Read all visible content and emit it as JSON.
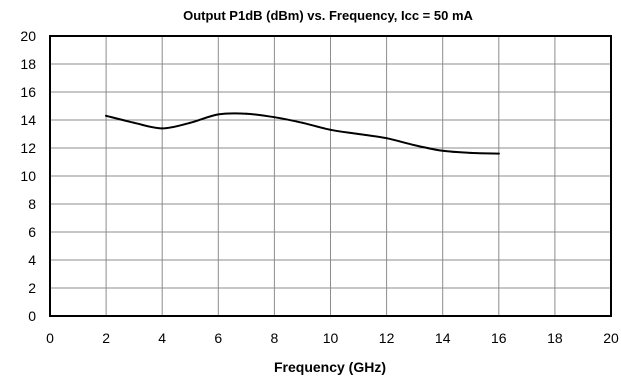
{
  "chart_data": {
    "type": "line",
    "title": "Output P1dB (dBm) vs. Frequency, Icc = 50 mA",
    "xlabel": "Frequency (GHz)",
    "ylabel": "",
    "xlim": [
      0,
      20
    ],
    "ylim": [
      0,
      20
    ],
    "x_ticks": [
      0,
      2,
      4,
      6,
      8,
      10,
      12,
      14,
      16,
      18,
      20
    ],
    "y_ticks": [
      0,
      2,
      4,
      6,
      8,
      10,
      12,
      14,
      16,
      18,
      20
    ],
    "grid": true,
    "legend": "none",
    "series": [
      {
        "color": "#000000",
        "x": [
          2,
          3,
          4,
          5,
          6,
          7,
          8,
          9,
          10,
          11,
          12,
          13,
          14,
          15,
          16
        ],
        "y": [
          14.3,
          13.8,
          13.4,
          13.8,
          14.4,
          14.45,
          14.2,
          13.8,
          13.3,
          13.0,
          12.7,
          12.2,
          11.8,
          11.65,
          11.6
        ]
      }
    ]
  }
}
